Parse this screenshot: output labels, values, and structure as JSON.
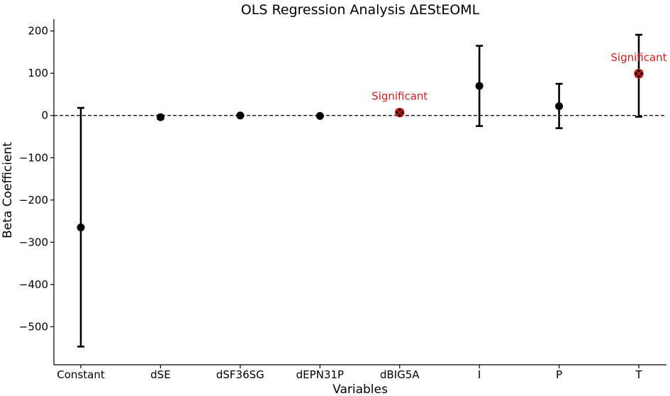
{
  "chart_data": {
    "type": "scatter",
    "title": "OLS Regression Analysis ΔEStEOML",
    "xlabel": "Variables",
    "ylabel": "Beta Coefficient",
    "categories": [
      "Constant",
      "dSE",
      "dSF36SG",
      "dEPN31P",
      "dBIG5A",
      "I",
      "P",
      "T"
    ],
    "values": [
      -265,
      -4,
      0,
      -1,
      7,
      70,
      22,
      99
    ],
    "ci_low": [
      -547,
      -8,
      -2,
      -3,
      5,
      -25,
      -30,
      -3
    ],
    "ci_high": [
      18,
      0,
      2,
      1,
      9,
      165,
      75,
      191
    ],
    "significant": [
      false,
      false,
      false,
      false,
      true,
      false,
      false,
      true
    ],
    "annotation_text": "Significant",
    "yticks": [
      200,
      100,
      0,
      -100,
      -200,
      -300,
      -400,
      -500
    ],
    "ytick_labels": [
      "200",
      "100",
      "0",
      "−100",
      "−200",
      "−300",
      "−400",
      "−500"
    ],
    "ylim": [
      -590,
      228
    ],
    "reference_line": 0,
    "grid": false,
    "colors": {
      "points": "#000000",
      "significant": "#cc1f1f",
      "reference_line": "#000000"
    }
  }
}
